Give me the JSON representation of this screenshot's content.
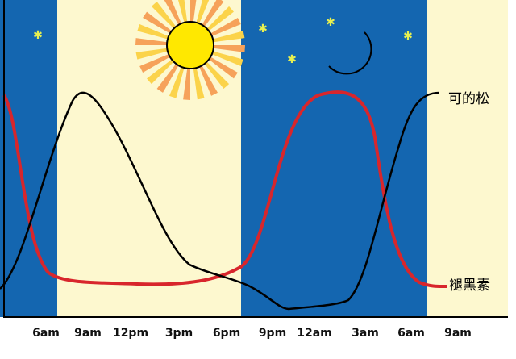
{
  "labels": {
    "cortisol": "可的松",
    "melatonin": "褪黑素"
  },
  "x_axis": [
    "6am",
    "9am",
    "12pm",
    "3pm",
    "6pm",
    "9pm",
    "12am",
    "3am",
    "6am",
    "9am"
  ]
}
